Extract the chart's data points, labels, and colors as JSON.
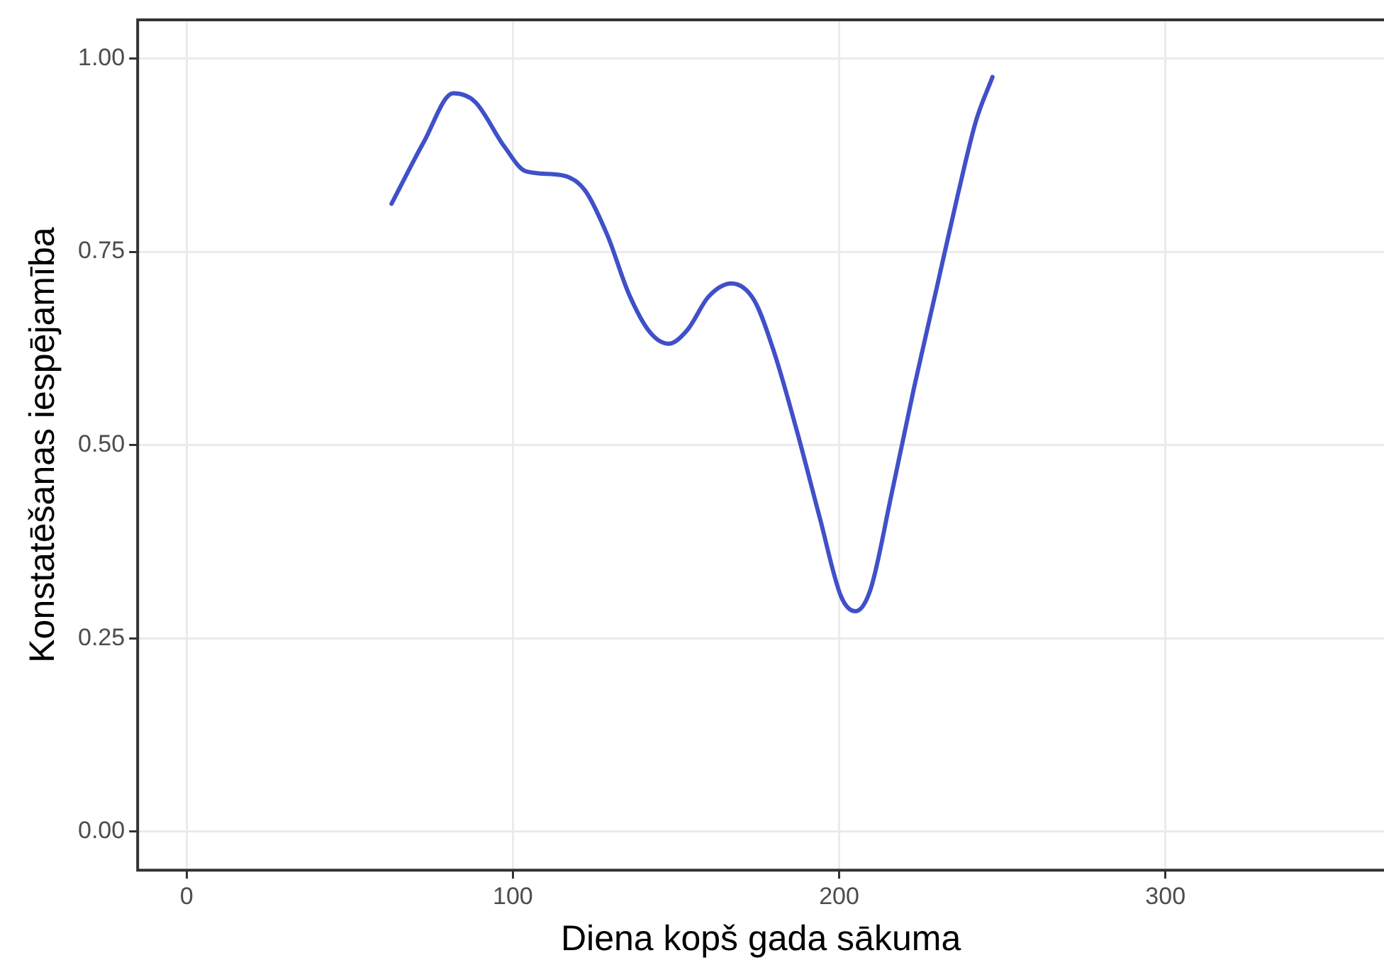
{
  "chart_data": {
    "type": "line",
    "xlabel": "Diena kopš gada sākuma",
    "ylabel": "Konstatēšanas iespējamība",
    "x": [
      62.8,
      72.7,
      81.7,
      88.4,
      97.4,
      104,
      115,
      122,
      129,
      135.5,
      142,
      147.7,
      153.5,
      160,
      167,
      174,
      180,
      187,
      194,
      200.6,
      205,
      209.6,
      216,
      223,
      230,
      236.5,
      242,
      247
    ],
    "series": [
      {
        "color": "#4050c8",
        "values": [
          0.812,
          0.892,
          0.955,
          0.944,
          0.886,
          0.854,
          0.849,
          0.83,
          0.771,
          0.696,
          0.646,
          0.631,
          0.649,
          0.692,
          0.709,
          0.687,
          0.621,
          0.519,
          0.407,
          0.304,
          0.285,
          0.313,
          0.435,
          0.575,
          0.705,
          0.826,
          0.92,
          0.976
        ]
      }
    ],
    "xlim": [
      -15,
      367
    ],
    "xticks": [
      0,
      100,
      200,
      300
    ],
    "ylim": [
      -0.05,
      1.05
    ],
    "yticks": [
      {
        "value": 0,
        "label": "0.00"
      },
      {
        "value": 0.25,
        "label": "0.25"
      },
      {
        "value": 0.5,
        "label": "0.50"
      },
      {
        "value": 0.75,
        "label": "0.75"
      },
      {
        "value": 1,
        "label": "1.00"
      }
    ],
    "grid": true,
    "legend": false,
    "marker": "none",
    "line_style": "solid"
  }
}
